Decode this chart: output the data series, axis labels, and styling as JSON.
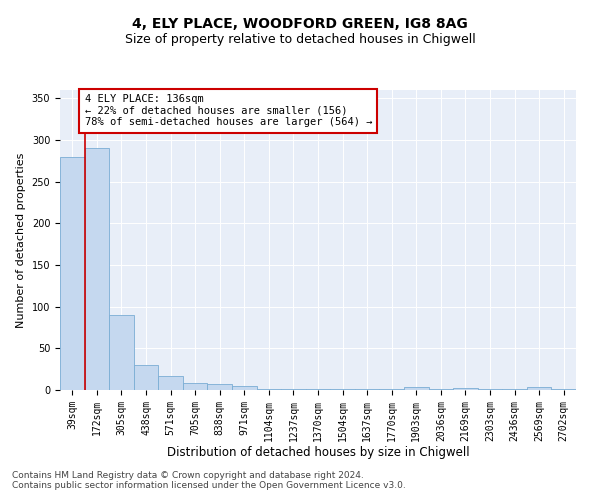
{
  "title1": "4, ELY PLACE, WOODFORD GREEN, IG8 8AG",
  "title2": "Size of property relative to detached houses in Chigwell",
  "xlabel": "Distribution of detached houses by size in Chigwell",
  "ylabel": "Number of detached properties",
  "categories": [
    "39sqm",
    "172sqm",
    "305sqm",
    "438sqm",
    "571sqm",
    "705sqm",
    "838sqm",
    "971sqm",
    "1104sqm",
    "1237sqm",
    "1370sqm",
    "1504sqm",
    "1637sqm",
    "1770sqm",
    "1903sqm",
    "2036sqm",
    "2169sqm",
    "2303sqm",
    "2436sqm",
    "2569sqm",
    "2702sqm"
  ],
  "values": [
    280,
    290,
    90,
    30,
    17,
    8,
    7,
    5,
    1,
    1,
    1,
    1,
    1,
    1,
    4,
    1,
    3,
    1,
    1,
    4,
    1
  ],
  "bar_color": "#c5d8ef",
  "bar_edge_color": "#7aadd4",
  "ylim": [
    0,
    360
  ],
  "yticks": [
    0,
    50,
    100,
    150,
    200,
    250,
    300,
    350
  ],
  "vline_x": 0.5,
  "vline_color": "#cc0000",
  "annotation_text": "4 ELY PLACE: 136sqm\n← 22% of detached houses are smaller (156)\n78% of semi-detached houses are larger (564) →",
  "annotation_box_color": "#ffffff",
  "annotation_box_edgecolor": "#cc0000",
  "footer": "Contains HM Land Registry data © Crown copyright and database right 2024.\nContains public sector information licensed under the Open Government Licence v3.0.",
  "title1_fontsize": 10,
  "title2_fontsize": 9,
  "xlabel_fontsize": 8.5,
  "ylabel_fontsize": 8,
  "tick_fontsize": 7,
  "footer_fontsize": 6.5,
  "annotation_fontsize": 7.5
}
